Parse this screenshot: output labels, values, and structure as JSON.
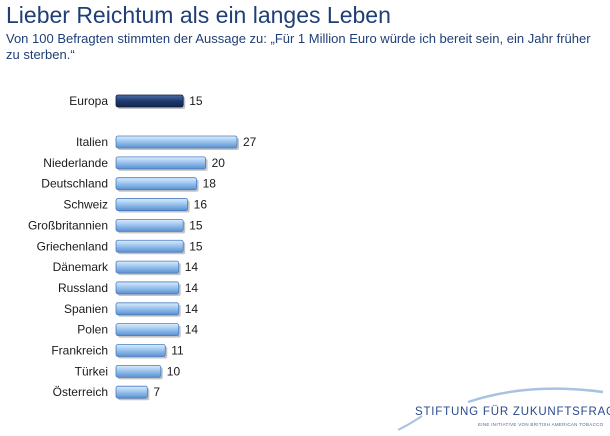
{
  "header": {
    "title": "Lieber Reichtum als ein langes Leben",
    "subtitle": "Von 100 Befragten stimmten der Aussage zu: „Für 1 Million Euro würde ich bereit sein, ein Jahr früher zu sterben.“"
  },
  "chart_data": {
    "type": "bar",
    "orientation": "horizontal",
    "categories": [
      "Europa",
      "Italien",
      "Niederlande",
      "Deutschland",
      "Schweiz",
      "Großbritannien",
      "Griechenland",
      "Dänemark",
      "Russland",
      "Spanien",
      "Polen",
      "Frankreich",
      "Türkei",
      "Österreich"
    ],
    "values": [
      15,
      27,
      20,
      18,
      16,
      15,
      15,
      14,
      14,
      14,
      14,
      11,
      10,
      7
    ],
    "highlight_category": "Europa",
    "highlight_color": "#1f3a6e",
    "bar_color": "#8cb8ea",
    "xlim": [
      0,
      30
    ],
    "grid": false,
    "legend": "none"
  },
  "logo": {
    "text": "STIFTUNG FÜR ZUKUNFTSFRAGEN",
    "subtext": "EINE INITIATIVE VON BRITISH AMERICAN TOBACCO"
  }
}
